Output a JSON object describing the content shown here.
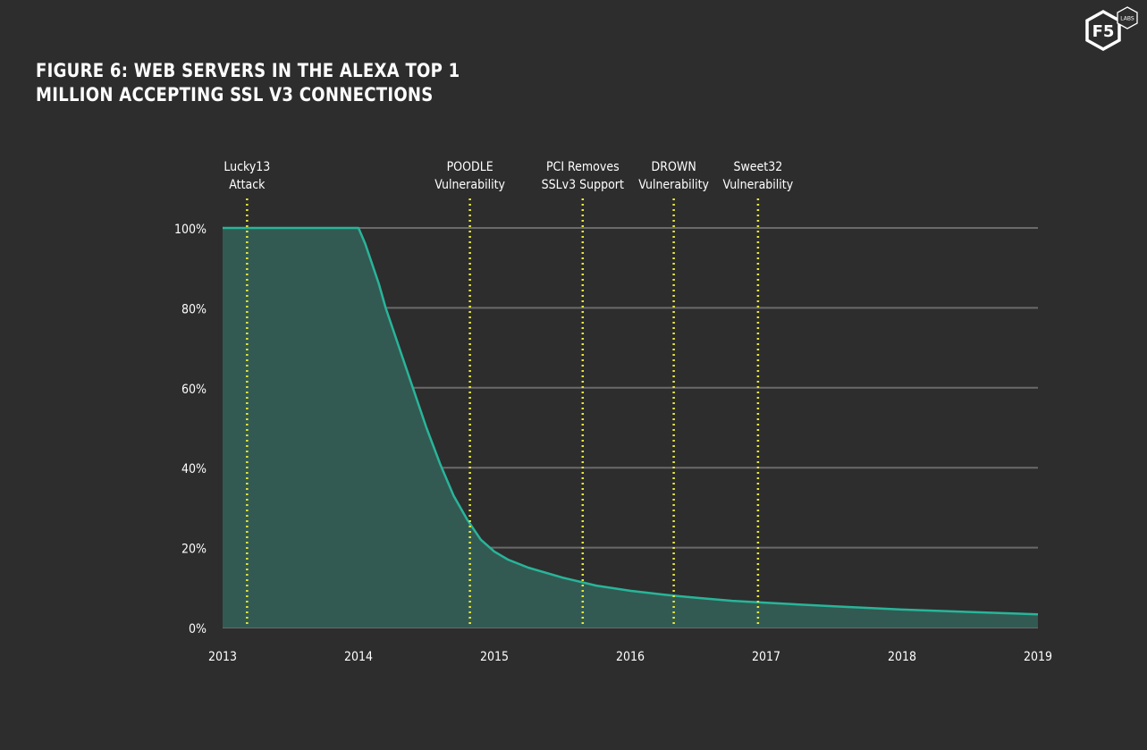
{
  "title": {
    "line1": "FIGURE 6: WEB SERVERS IN THE ALEXA TOP 1",
    "line2": "MILLION ACCEPTING SSL V3 CONNECTIONS"
  },
  "logo": {
    "main": "F5",
    "badge": "LABS"
  },
  "colors": {
    "background": "#2d2d2d",
    "grid": "#6a6a6a",
    "line": "#28b59a",
    "fill": "#335a52",
    "event": "#e8e83a",
    "text": "#ffffff"
  },
  "chart_data": {
    "type": "area",
    "title": "FIGURE 6: WEB SERVERS IN THE ALEXA TOP 1 MILLION ACCEPTING SSL V3 CONNECTIONS",
    "xlabel": "",
    "ylabel": "",
    "xlim": [
      2013,
      2019
    ],
    "ylim": [
      0,
      100
    ],
    "grid": true,
    "x_ticks": [
      2013,
      2014,
      2015,
      2016,
      2017,
      2018,
      2019
    ],
    "x_tick_labels": [
      "2013",
      "2014",
      "2015",
      "2016",
      "2017",
      "2018",
      "2019"
    ],
    "y_ticks": [
      0,
      20,
      40,
      60,
      80,
      100
    ],
    "y_tick_labels": [
      "0%",
      "20%",
      "40%",
      "60%",
      "80%",
      "100%"
    ],
    "series": [
      {
        "name": "Web servers accepting SSLv3",
        "x": [
          2013.0,
          2014.0,
          2014.05,
          2014.1,
          2014.15,
          2014.2,
          2014.3,
          2014.4,
          2014.5,
          2014.6,
          2014.7,
          2014.8,
          2014.9,
          2015.0,
          2015.1,
          2015.25,
          2015.5,
          2015.75,
          2016.0,
          2016.25,
          2016.5,
          2016.75,
          2017.0,
          2017.5,
          2018.0,
          2018.5,
          2019.0
        ],
        "values": [
          100,
          100,
          96,
          91,
          86,
          80,
          70,
          60,
          50,
          41,
          33,
          27,
          22,
          19,
          17,
          15,
          12.5,
          10.5,
          9.2,
          8.2,
          7.4,
          6.7,
          6.2,
          5.3,
          4.5,
          3.9,
          3.3
        ]
      }
    ],
    "events": [
      {
        "line1": "Lucky13",
        "line2": "Attack",
        "x": 2013.18
      },
      {
        "line1": "POODLE",
        "line2": "Vulnerability",
        "x": 2014.82
      },
      {
        "line1": "PCI Removes",
        "line2": "SSLv3 Support",
        "x": 2015.65
      },
      {
        "line1": "DROWN",
        "line2": "Vulnerability",
        "x": 2016.32
      },
      {
        "line1": "Sweet32",
        "line2": "Vulnerability",
        "x": 2016.94
      }
    ]
  }
}
